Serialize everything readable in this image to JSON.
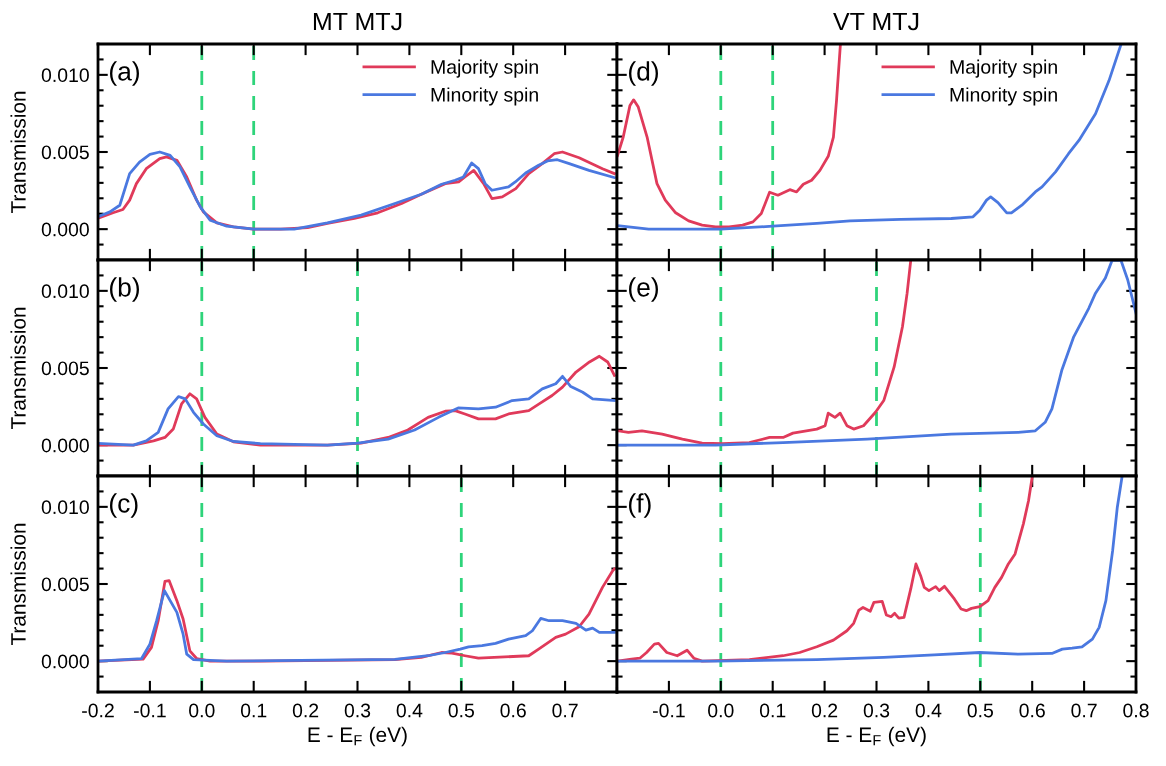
{
  "chart_data": [
    {
      "type": "line",
      "title": "MT MTJ",
      "ylabel": "Transmission",
      "annotations": [
        "(a)"
      ],
      "legend": "top right",
      "tick_labels": "y",
      "line_style": "solid",
      "xlim": [
        -0.2,
        0.8
      ],
      "ylim": [
        -0.002,
        0.012
      ],
      "xticks": [
        -0.2,
        -0.1,
        0.0,
        0.1,
        0.2,
        0.3,
        0.4,
        0.5,
        0.6,
        0.7,
        0.8
      ],
      "yticks": [
        {
          "value": -0.001,
          "label": null
        },
        {
          "value": 0.0,
          "label": "0.000"
        },
        {
          "value": 0.001,
          "label": null
        },
        {
          "value": 0.002,
          "label": null
        },
        {
          "value": 0.003,
          "label": null
        },
        {
          "value": 0.004,
          "label": null
        },
        {
          "value": 0.005,
          "label": "0.005"
        },
        {
          "value": 0.006,
          "label": null
        },
        {
          "value": 0.007,
          "label": null
        },
        {
          "value": 0.008,
          "label": null
        },
        {
          "value": 0.009,
          "label": null
        },
        {
          "value": 0.01,
          "label": "0.010"
        },
        {
          "value": 0.011,
          "label": null
        }
      ],
      "ref_lines": [
        {
          "axis": "x",
          "value": 0.0,
          "color": "#2ed47a",
          "line_style": "dashed"
        },
        {
          "axis": "x",
          "value": 0.1,
          "color": "#2ed47a",
          "line_style": "dashed"
        }
      ],
      "series": [
        {
          "name": "Majority spin",
          "color": "#e03a5a",
          "x": [
            -0.2,
            -0.171,
            -0.152,
            -0.139,
            -0.126,
            -0.107,
            -0.081,
            -0.068,
            -0.048,
            -0.029,
            -0.01,
            0.003,
            0.029,
            0.061,
            0.1,
            0.152,
            0.204,
            0.242,
            0.294,
            0.339,
            0.385,
            0.423,
            0.469,
            0.495,
            0.507,
            0.524,
            0.543,
            0.559,
            0.579,
            0.605,
            0.63,
            0.656,
            0.679,
            0.695,
            0.727,
            0.772,
            0.795
          ],
          "values": [
            0.0007,
            0.00106,
            0.00127,
            0.00188,
            0.00295,
            0.00392,
            0.00457,
            0.00468,
            0.00446,
            0.00338,
            0.00188,
            0.00112,
            0.00041,
            0.00015,
            0.0,
            0.0,
            0.0001,
            0.00037,
            0.00069,
            0.00106,
            0.00166,
            0.00226,
            0.00295,
            0.00306,
            0.00338,
            0.00381,
            0.00295,
            0.00198,
            0.00209,
            0.00263,
            0.0036,
            0.00425,
            0.00489,
            0.005,
            0.00463,
            0.00392,
            0.0036
          ]
        },
        {
          "name": "Minority spin",
          "color": "#4a78e0",
          "x": [
            -0.2,
            -0.177,
            -0.158,
            -0.139,
            -0.12,
            -0.1,
            -0.081,
            -0.061,
            -0.042,
            -0.023,
            -0.003,
            0.016,
            0.048,
            0.1,
            0.178,
            0.242,
            0.307,
            0.372,
            0.423,
            0.462,
            0.488,
            0.504,
            0.52,
            0.533,
            0.546,
            0.559,
            0.591,
            0.604,
            0.624,
            0.649,
            0.666,
            0.685,
            0.708,
            0.746,
            0.795
          ],
          "values": [
            0.0008,
            0.00112,
            0.00155,
            0.0036,
            0.00435,
            0.00485,
            0.005,
            0.00478,
            0.00403,
            0.00274,
            0.00144,
            0.00058,
            0.00019,
            0.0,
            0.0,
            0.00041,
            0.00091,
            0.00166,
            0.00226,
            0.00291,
            0.00317,
            0.00338,
            0.00429,
            0.00392,
            0.00295,
            0.00252,
            0.00274,
            0.00306,
            0.00364,
            0.00414,
            0.00442,
            0.0045,
            0.00425,
            0.00381,
            0.00334
          ]
        }
      ]
    },
    {
      "type": "line",
      "title": "VT MTJ",
      "annotations": [
        "(d)"
      ],
      "legend": "top right",
      "tick_labels": false,
      "line_style": "solid",
      "xlim": [
        -0.2,
        0.8
      ],
      "ylim": [
        -0.002,
        0.012
      ],
      "xticks": [
        -0.2,
        -0.1,
        0.0,
        0.1,
        0.2,
        0.3,
        0.4,
        0.5,
        0.6,
        0.7,
        0.8
      ],
      "yticks": [
        {
          "value": -0.001,
          "label": null
        },
        0.0,
        {
          "value": 0.001,
          "label": null
        },
        {
          "value": 0.002,
          "label": null
        },
        {
          "value": 0.003,
          "label": null
        },
        {
          "value": 0.004,
          "label": null
        },
        0.005,
        {
          "value": 0.006,
          "label": null
        },
        {
          "value": 0.007,
          "label": null
        },
        {
          "value": 0.008,
          "label": null
        },
        {
          "value": 0.009,
          "label": null
        },
        0.01,
        {
          "value": 0.011,
          "label": null
        }
      ],
      "ref_lines": [
        {
          "axis": "x",
          "value": 0.0,
          "color": "#2ed47a",
          "line_style": "dashed"
        },
        {
          "axis": "x",
          "value": 0.1,
          "color": "#2ed47a",
          "line_style": "dashed"
        }
      ],
      "series": [
        {
          "name": "Majority spin",
          "color": "#e03a5a",
          "x": [
            -0.199,
            -0.188,
            -0.175,
            -0.168,
            -0.159,
            -0.142,
            -0.123,
            -0.107,
            -0.087,
            -0.062,
            -0.036,
            -0.01,
            0.016,
            0.042,
            0.062,
            0.078,
            0.094,
            0.11,
            0.133,
            0.146,
            0.159,
            0.175,
            0.191,
            0.207,
            0.217,
            0.223,
            0.2305
          ],
          "values": [
            0.00478,
            0.00597,
            0.00802,
            0.00838,
            0.00791,
            0.00597,
            0.00295,
            0.00188,
            0.00106,
            0.00054,
            0.00026,
            0.00015,
            0.00015,
            0.00026,
            0.00047,
            0.00101,
            0.00239,
            0.0022,
            0.00256,
            0.00241,
            0.00291,
            0.00317,
            0.00381,
            0.00472,
            0.00597,
            0.00834,
            0.012
          ]
        },
        {
          "name": "Minority spin",
          "color": "#4a78e0",
          "x": [
            -0.199,
            -0.139,
            -0.074,
            0.0,
            0.1,
            0.185,
            0.249,
            0.347,
            0.444,
            0.486,
            0.499,
            0.512,
            0.52,
            0.534,
            0.551,
            0.56,
            0.58,
            0.606,
            0.619,
            0.645,
            0.67,
            0.69,
            0.722,
            0.748,
            0.771
          ],
          "values": [
            0.00022,
            0.0,
            0.0,
            0.0,
            0.00019,
            0.00037,
            0.00054,
            0.00063,
            0.00069,
            0.0008,
            0.00123,
            0.00188,
            0.00209,
            0.00172,
            0.00106,
            0.00106,
            0.00155,
            0.00241,
            0.00274,
            0.00371,
            0.00489,
            0.00575,
            0.00748,
            0.00963,
            0.01196
          ]
        }
      ]
    },
    {
      "type": "line",
      "ylabel": "Transmission",
      "annotations": [
        "(b)"
      ],
      "legend": false,
      "tick_labels": "y",
      "line_style": "solid",
      "xlim": [
        -0.2,
        0.8
      ],
      "ylim": [
        -0.002,
        0.012
      ],
      "xticks": [
        -0.2,
        -0.1,
        0.0,
        0.1,
        0.2,
        0.3,
        0.4,
        0.5,
        0.6,
        0.7,
        0.8
      ],
      "yticks": [
        {
          "value": -0.001,
          "label": null
        },
        {
          "value": 0.0,
          "label": "0.000"
        },
        {
          "value": 0.001,
          "label": null
        },
        {
          "value": 0.002,
          "label": null
        },
        {
          "value": 0.003,
          "label": null
        },
        {
          "value": 0.004,
          "label": null
        },
        {
          "value": 0.005,
          "label": "0.005"
        },
        {
          "value": 0.006,
          "label": null
        },
        {
          "value": 0.007,
          "label": null
        },
        {
          "value": 0.008,
          "label": null
        },
        {
          "value": 0.009,
          "label": null
        },
        {
          "value": 0.01,
          "label": "0.010"
        },
        {
          "value": 0.011,
          "label": null
        }
      ],
      "ref_lines": [
        {
          "axis": "x",
          "value": 0.0,
          "color": "#2ed47a",
          "line_style": "dashed"
        },
        {
          "axis": "x",
          "value": 0.3,
          "color": "#2ed47a",
          "line_style": "dashed"
        }
      ],
      "series": [
        {
          "color": "#e03a5a",
          "x": [
            -0.2,
            -0.132,
            -0.093,
            -0.071,
            -0.055,
            -0.039,
            -0.023,
            -0.01,
            0.006,
            0.029,
            0.061,
            0.113,
            0.242,
            0.307,
            0.359,
            0.397,
            0.436,
            0.469,
            0.488,
            0.507,
            0.533,
            0.566,
            0.591,
            0.63,
            0.65,
            0.675,
            0.695,
            0.721,
            0.747,
            0.766,
            0.782,
            0.795
          ],
          "values": [
            0.0,
            0.0,
            0.00028,
            0.0005,
            0.00104,
            0.00267,
            0.00333,
            0.003,
            0.0018,
            0.00072,
            0.00022,
            0.0,
            0.0,
            0.00013,
            0.0005,
            0.00098,
            0.0018,
            0.0022,
            0.00224,
            0.00202,
            0.0017,
            0.0017,
            0.00202,
            0.00224,
            0.00267,
            0.00322,
            0.00376,
            0.00474,
            0.00539,
            0.00576,
            0.00539,
            0.00452
          ]
        },
        {
          "color": "#4a78e0",
          "x": [
            -0.2,
            -0.132,
            -0.107,
            -0.084,
            -0.065,
            -0.045,
            -0.032,
            -0.016,
            0.003,
            0.029,
            0.061,
            0.113,
            0.242,
            0.3,
            0.359,
            0.41,
            0.456,
            0.494,
            0.533,
            0.566,
            0.598,
            0.63,
            0.656,
            0.682,
            0.695,
            0.711,
            0.734,
            0.753,
            0.795
          ],
          "values": [
            0.00011,
            0.0,
            0.00028,
            0.00083,
            0.00235,
            0.00315,
            0.003,
            0.00213,
            0.00137,
            0.00061,
            0.00024,
            0.0001,
            0.0,
            0.00013,
            0.00039,
            0.00098,
            0.0018,
            0.00241,
            0.00235,
            0.00246,
            0.00289,
            0.003,
            0.00365,
            0.00398,
            0.00446,
            0.0038,
            0.00343,
            0.003,
            0.00289
          ]
        }
      ]
    },
    {
      "type": "line",
      "annotations": [
        "(e)"
      ],
      "legend": false,
      "tick_labels": false,
      "line_style": "solid",
      "xlim": [
        -0.2,
        0.8
      ],
      "ylim": [
        -0.002,
        0.012
      ],
      "xticks": [
        -0.2,
        -0.1,
        0.0,
        0.1,
        0.2,
        0.3,
        0.4,
        0.5,
        0.6,
        0.7,
        0.8
      ],
      "yticks": [
        {
          "value": -0.001,
          "label": null
        },
        0.0,
        {
          "value": 0.001,
          "label": null
        },
        {
          "value": 0.002,
          "label": null
        },
        {
          "value": 0.003,
          "label": null
        },
        {
          "value": 0.004,
          "label": null
        },
        0.005,
        {
          "value": 0.006,
          "label": null
        },
        {
          "value": 0.007,
          "label": null
        },
        {
          "value": 0.008,
          "label": null
        },
        {
          "value": 0.009,
          "label": null
        },
        0.01,
        {
          "value": 0.011,
          "label": null
        }
      ],
      "ref_lines": [
        {
          "axis": "x",
          "value": 0.0,
          "color": "#2ed47a",
          "line_style": "dashed"
        },
        {
          "axis": "x",
          "value": 0.3,
          "color": "#2ed47a",
          "line_style": "dashed"
        }
      ],
      "series": [
        {
          "color": "#e03a5a",
          "x": [
            -0.199,
            -0.178,
            -0.152,
            -0.113,
            -0.074,
            -0.036,
            0.003,
            0.055,
            0.094,
            0.12,
            0.139,
            0.185,
            0.201,
            0.207,
            0.22,
            0.23,
            0.243,
            0.256,
            0.275,
            0.298,
            0.314,
            0.334,
            0.35,
            0.359,
            0.366
          ],
          "values": [
            0.00093,
            0.00083,
            0.00093,
            0.00072,
            0.00039,
            0.00013,
            0.0001,
            0.00017,
            0.0005,
            0.0005,
            0.00078,
            0.00104,
            0.00126,
            0.00207,
            0.0018,
            0.00207,
            0.00126,
            0.00104,
            0.00126,
            0.00213,
            0.00289,
            0.00507,
            0.00767,
            0.00985,
            0.01198
          ]
        },
        {
          "color": "#4a78e0",
          "x": [
            -0.199,
            -0.01,
            0.12,
            0.282,
            0.444,
            0.573,
            0.606,
            0.625,
            0.638,
            0.657,
            0.68,
            0.709,
            0.722,
            0.741,
            0.754,
            0.771,
            0.784,
            0.8
          ],
          "values": [
            0.0,
            0.0,
            0.00017,
            0.00039,
            0.00072,
            0.00083,
            0.00093,
            0.00148,
            0.00235,
            0.00485,
            0.00702,
            0.00887,
            0.00985,
            0.01083,
            0.01198,
            0.01198,
            0.01072,
            0.00854
          ]
        }
      ]
    },
    {
      "type": "line",
      "ylabel": "Transmission",
      "xlabel": "E - E$_{F}$ (eV)",
      "annotations": [
        "(c)"
      ],
      "legend": false,
      "line_style": "solid",
      "xlim": [
        -0.2,
        0.8
      ],
      "ylim": [
        -0.002,
        0.012
      ],
      "xticks": [
        {
          "value": -0.2,
          "label": "-0.2"
        },
        {
          "value": -0.1,
          "label": "-0.1"
        },
        {
          "value": 0.0,
          "label": "0.0"
        },
        {
          "value": 0.1,
          "label": "0.1"
        },
        {
          "value": 0.2,
          "label": "0.2"
        },
        {
          "value": 0.3,
          "label": "0.3"
        },
        {
          "value": 0.4,
          "label": "0.4"
        },
        {
          "value": 0.5,
          "label": "0.5"
        },
        {
          "value": 0.6,
          "label": "0.6"
        },
        {
          "value": 0.7,
          "label": "0.7"
        },
        {
          "value": 0.8,
          "label": null
        }
      ],
      "yticks": [
        {
          "value": -0.001,
          "label": null
        },
        {
          "value": 0.0,
          "label": "0.000"
        },
        {
          "value": 0.001,
          "label": null
        },
        {
          "value": 0.002,
          "label": null
        },
        {
          "value": 0.003,
          "label": null
        },
        {
          "value": 0.004,
          "label": null
        },
        {
          "value": 0.005,
          "label": "0.005"
        },
        {
          "value": 0.006,
          "label": null
        },
        {
          "value": 0.007,
          "label": null
        },
        {
          "value": 0.008,
          "label": null
        },
        {
          "value": 0.009,
          "label": null
        },
        {
          "value": 0.01,
          "label": "0.010"
        },
        {
          "value": 0.011,
          "label": null
        }
      ],
      "ref_lines": [
        {
          "axis": "x",
          "value": 0.0,
          "color": "#2ed47a",
          "line_style": "dashed"
        },
        {
          "axis": "x",
          "value": 0.5,
          "color": "#2ed47a",
          "line_style": "dashed"
        }
      ],
      "series": [
        {
          "color": "#e03a5a",
          "x": [
            -0.2,
            -0.113,
            -0.097,
            -0.084,
            -0.071,
            -0.063,
            -0.048,
            -0.036,
            -0.023,
            -0.01,
            0.016,
            0.113,
            0.372,
            0.423,
            0.462,
            0.482,
            0.507,
            0.533,
            0.63,
            0.649,
            0.682,
            0.701,
            0.727,
            0.746,
            0.772,
            0.792,
            0.795
          ],
          "values": [
            0.0,
            0.00013,
            0.00089,
            0.00262,
            0.00517,
            0.00522,
            0.00392,
            0.00273,
            0.00067,
            0.00017,
            0.0,
            0.0,
            0.0001,
            0.00024,
            0.00056,
            0.00052,
            0.00035,
            0.00019,
            0.00035,
            0.00078,
            0.00154,
            0.00175,
            0.00223,
            0.00305,
            0.00478,
            0.00587,
            0.00597
          ]
        },
        {
          "color": "#4a78e0",
          "x": [
            -0.2,
            -0.116,
            -0.1,
            -0.087,
            -0.072,
            -0.061,
            -0.048,
            -0.036,
            -0.029,
            -0.016,
            0.048,
            0.372,
            0.436,
            0.469,
            0.498,
            0.514,
            0.54,
            0.566,
            0.591,
            0.624,
            0.637,
            0.653,
            0.669,
            0.695,
            0.721,
            0.74,
            0.753,
            0.766,
            0.795
          ],
          "values": [
            0.0,
            0.00017,
            0.0011,
            0.00262,
            0.00457,
            0.00392,
            0.00316,
            0.00175,
            0.00045,
            0.0001,
            0.0,
            0.00011,
            0.00035,
            0.00056,
            0.00078,
            0.00093,
            0.001,
            0.00115,
            0.00143,
            0.00165,
            0.00197,
            0.00277,
            0.00262,
            0.00262,
            0.00245,
            0.00201,
            0.00214,
            0.00186,
            0.00186
          ]
        }
      ]
    },
    {
      "type": "line",
      "xlabel": "E - E$_{F}$ (eV)",
      "annotations": [
        "(f)"
      ],
      "legend": false,
      "tick_labels": "x",
      "line_style": "solid",
      "xlim": [
        -0.2,
        0.8
      ],
      "ylim": [
        -0.002,
        0.012
      ],
      "xticks": [
        {
          "value": -0.2,
          "label": null
        },
        {
          "value": -0.1,
          "label": "-0.1"
        },
        {
          "value": 0.0,
          "label": "0.0"
        },
        {
          "value": 0.1,
          "label": "0.1"
        },
        {
          "value": 0.2,
          "label": "0.2"
        },
        {
          "value": 0.3,
          "label": "0.3"
        },
        {
          "value": 0.4,
          "label": "0.4"
        },
        {
          "value": 0.5,
          "label": "0.5"
        },
        {
          "value": 0.6,
          "label": "0.6"
        },
        {
          "value": 0.7,
          "label": "0.7"
        },
        {
          "value": 0.8,
          "label": "0.8"
        }
      ],
      "yticks": [
        {
          "value": -0.001,
          "label": null
        },
        0.0,
        {
          "value": 0.001,
          "label": null
        },
        {
          "value": 0.002,
          "label": null
        },
        {
          "value": 0.003,
          "label": null
        },
        {
          "value": 0.004,
          "label": null
        },
        0.005,
        {
          "value": 0.006,
          "label": null
        },
        {
          "value": 0.007,
          "label": null
        },
        {
          "value": 0.008,
          "label": null
        },
        {
          "value": 0.009,
          "label": null
        },
        0.01,
        {
          "value": 0.011,
          "label": null
        }
      ],
      "ref_lines": [
        {
          "axis": "x",
          "value": 0.0,
          "color": "#2ed47a",
          "line_style": "dashed"
        },
        {
          "axis": "x",
          "value": 0.5,
          "color": "#2ed47a",
          "line_style": "dashed"
        }
      ],
      "series": [
        {
          "color": "#e03a5a",
          "x": [
            -0.199,
            -0.172,
            -0.156,
            -0.143,
            -0.128,
            -0.12,
            -0.104,
            -0.084,
            -0.065,
            -0.052,
            -0.036,
            0.055,
            0.12,
            0.152,
            0.185,
            0.217,
            0.243,
            0.256,
            0.266,
            0.274,
            0.288,
            0.295,
            0.311,
            0.319,
            0.328,
            0.335,
            0.343,
            0.353,
            0.366,
            0.376,
            0.385,
            0.392,
            0.401,
            0.414,
            0.421,
            0.431,
            0.45,
            0.463,
            0.473,
            0.483,
            0.499,
            0.515,
            0.528,
            0.541,
            0.554,
            0.567,
            0.583,
            0.593,
            0.6
          ],
          "values": [
            0.0,
            0.00013,
            0.00019,
            0.00056,
            0.0011,
            0.00115,
            0.00056,
            0.00035,
            0.00071,
            0.00019,
            0.0,
            0.0001,
            0.00035,
            0.00056,
            0.00093,
            0.00136,
            0.00197,
            0.00245,
            0.00331,
            0.00348,
            0.00323,
            0.00381,
            0.00387,
            0.00299,
            0.00288,
            0.0031,
            0.00279,
            0.00284,
            0.00468,
            0.0063,
            0.00554,
            0.00478,
            0.00457,
            0.00483,
            0.00457,
            0.00485,
            0.00403,
            0.00338,
            0.00327,
            0.00342,
            0.00353,
            0.00392,
            0.00478,
            0.00543,
            0.0063,
            0.00695,
            0.0089,
            0.01041,
            0.01193
          ]
        },
        {
          "color": "#4a78e0",
          "x": [
            -0.199,
            -0.01,
            0.185,
            0.314,
            0.411,
            0.499,
            0.573,
            0.638,
            0.658,
            0.677,
            0.696,
            0.716,
            0.729,
            0.742,
            0.755,
            0.764,
            0.773
          ],
          "values": [
            0.0,
            0.0,
            0.0001,
            0.00024,
            0.00041,
            0.00056,
            0.00045,
            0.0005,
            0.00078,
            0.00084,
            0.00093,
            0.00143,
            0.00219,
            0.00392,
            0.00716,
            0.00998,
            0.01193
          ]
        }
      ]
    }
  ]
}
